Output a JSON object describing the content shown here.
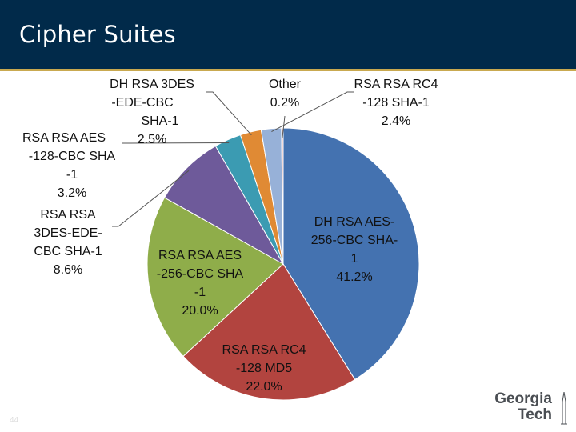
{
  "header": {
    "title": "Cipher Suites"
  },
  "slide_number": "44",
  "logo": {
    "line1": "Georgia",
    "line2": "Tech"
  },
  "colors": {
    "header_bg": "#012a4a",
    "accent": "#c9a950"
  },
  "chart_data": {
    "type": "pie",
    "title": "",
    "series": [
      {
        "values": [
          41.2,
          22.0,
          20.0,
          8.6,
          3.2,
          2.5,
          2.4,
          0.2
        ]
      }
    ],
    "slices": [
      {
        "label": "DH RSA AES-256-CBC SHA-1",
        "lines": [
          "DH RSA AES-",
          "256-CBC SHA-",
          "1",
          "41.2%"
        ],
        "value": 41.2,
        "color": "#4472b0"
      },
      {
        "label": "RSA RSA RC4 -128 MD5",
        "lines": [
          "RSA RSA RC4",
          "-128 MD5",
          "22.0%"
        ],
        "value": 22.0,
        "color": "#b2443f"
      },
      {
        "label": "RSA RSA AES -256-CBC SHA -1",
        "lines": [
          "RSA RSA AES",
          "-256-CBC SHA",
          "-1",
          "20.0%"
        ],
        "value": 20.0,
        "color": "#8fad4a"
      },
      {
        "label": "RSA RSA 3DES-EDE-CBC SHA-1",
        "lines": [
          "RSA RSA",
          "3DES-EDE-",
          "CBC SHA-1",
          "8.6%"
        ],
        "value": 8.6,
        "color": "#6e5a9a"
      },
      {
        "label": "RSA RSA AES -128-CBC SHA -1",
        "lines": [
          "RSA RSA AES",
          "-128-CBC SHA",
          "-1",
          "3.2%"
        ],
        "value": 3.2,
        "color": "#3b9bb2"
      },
      {
        "label": "DH RSA 3DES -EDE-CBC SHA-1",
        "lines": [
          "DH RSA 3DES",
          "-EDE-CBC",
          "SHA-1",
          "2.5%"
        ],
        "value": 2.5,
        "color": "#e08a34"
      },
      {
        "label": "RSA RSA RC4 -128 SHA-1",
        "lines": [
          "RSA RSA RC4",
          "-128 SHA-1",
          "2.4%"
        ],
        "value": 2.4,
        "color": "#97b1d8"
      },
      {
        "label": "Other",
        "lines": [
          "Other",
          "0.2%"
        ],
        "value": 0.2,
        "color": "#e8b7b3"
      }
    ],
    "start_angle_deg": 0,
    "direction": "clockwise",
    "legend": "none",
    "labels": "outside-and-inside"
  }
}
